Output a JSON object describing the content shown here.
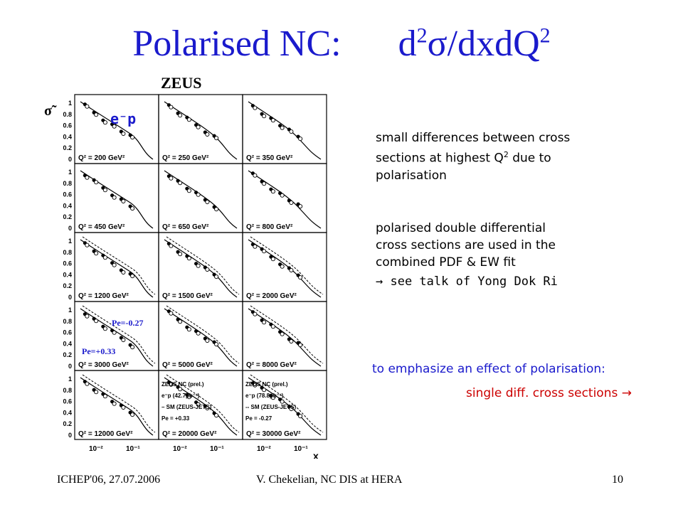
{
  "slide": {
    "title_left": "Polarised NC:",
    "title_right_pre": "d",
    "title_right_sup1": "2",
    "title_right_sigma": "σ",
    "title_right_mid": "/dxdQ",
    "title_right_sup2": "2",
    "zeus_label": "ZEUS",
    "note1_line1": "small differences between cross",
    "note1_line2": "sections at highest Q",
    "note1_sup": "2",
    "note1_line2_end": " due to",
    "note1_line3": "polarisation",
    "note2_line1": "polarised double differential",
    "note2_line2": "cross sections are used in the",
    "note2_line3": "combined PDF & EW  fit",
    "ref_arrow": "→",
    "ref_text": " see talk of Yong Dok Ri",
    "emphasize": "to emphasize an effect of polarisation:",
    "single_diff": "single diff. cross sections",
    "single_arrow": "→"
  },
  "footer": {
    "left": "ICHEP'06, 27.07.2006",
    "center": "V. Chekelian,  NC DIS at HERA",
    "right": "10"
  },
  "figure": {
    "yaxis_symbol": "σ̃",
    "ep_label": "e⁻p",
    "x_axis_label": "x",
    "x_ticks": [
      "10⁻²",
      "10⁻¹"
    ],
    "y_ticks": [
      "0",
      "0.2",
      "0.4",
      "0.6",
      "0.8",
      "1"
    ],
    "pol_neg_label": "Pe=-0.27",
    "pol_pos_label": "Pe=+0.33",
    "panels": [
      "Q² = 200 GeV²",
      "Q² = 250 GeV²",
      "Q² = 350 GeV²",
      "Q² = 450 GeV²",
      "Q² = 650 GeV²",
      "Q² = 800 GeV²",
      "Q² = 1200 GeV²",
      "Q² = 1500 GeV²",
      "Q² = 2000 GeV²",
      "Q² = 3000 GeV²",
      "Q² = 5000 GeV²",
      "Q² = 8000 GeV²",
      "Q² = 12000 GeV²",
      "Q² = 20000 GeV²",
      "Q² = 30000 GeV²"
    ],
    "legend_left": [
      "ZEUS NC (prel.)",
      "e⁻p (42.7pb⁻¹)",
      "– SM (ZEUS-JETS)",
      "Pe = +0.33"
    ],
    "legend_right": [
      "ZEUS NC (prel.)",
      "e⁻p (78.8pb⁻¹)",
      "-- SM (ZEUS-JETS)",
      "Pe = -0.27"
    ]
  }
}
